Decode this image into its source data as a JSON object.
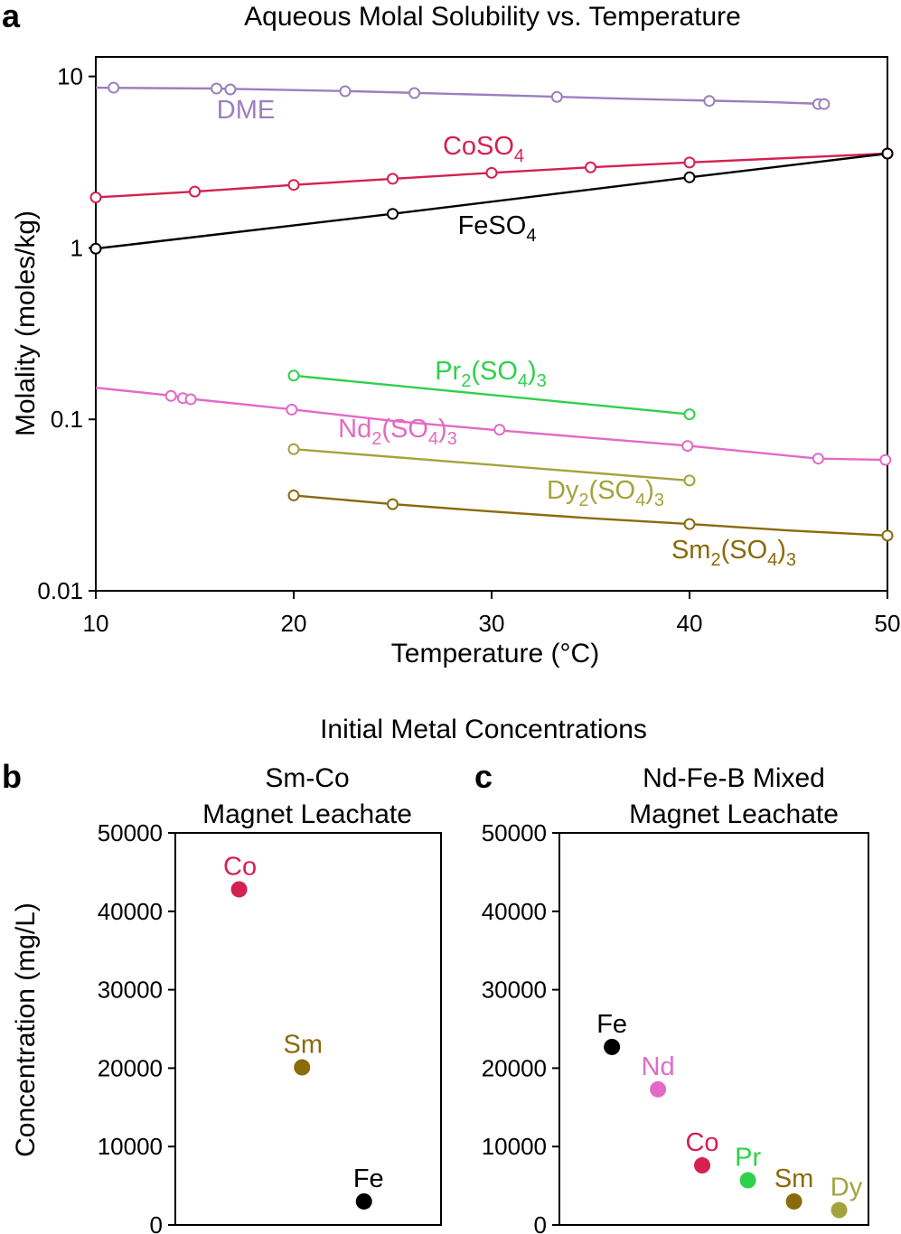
{
  "panel_letters": {
    "a": "a",
    "b": "b",
    "c": "c"
  },
  "chart_data": [
    {
      "panel": "a",
      "type": "line",
      "title": "Aqueous Molal Solubility vs. Temperature",
      "xlabel": "Temperature (°C)",
      "ylabel": "Molality (moles/kg)",
      "xscale": "linear",
      "yscale": "log",
      "xlim": [
        10,
        50
      ],
      "ylim": [
        0.01,
        13
      ],
      "xticks": [
        "10",
        "20",
        "30",
        "40",
        "50"
      ],
      "yticks": [
        {
          "value": 10,
          "label": "10"
        },
        {
          "value": 1,
          "label": "1"
        },
        {
          "value": 0.1,
          "label": "0.1"
        },
        {
          "value": 0.01,
          "label": "0.01"
        }
      ],
      "series": [
        {
          "name": "DME",
          "label_parts": [
            {
              "t": "DME"
            }
          ],
          "color": "#9b7fbf",
          "line": [
            [
              10,
              8.6
            ],
            [
              16,
              8.5
            ],
            [
              23,
              8.2
            ],
            [
              30,
              7.8
            ],
            [
              37,
              7.4
            ],
            [
              44,
              7.1
            ],
            [
              47,
              6.9
            ]
          ],
          "markers": [
            [
              10.9,
              8.6
            ],
            [
              16.1,
              8.5
            ],
            [
              16.8,
              8.4
            ],
            [
              22.6,
              8.2
            ],
            [
              26.1,
              8.0
            ],
            [
              33.3,
              7.6
            ],
            [
              41,
              7.2
            ],
            [
              46.5,
              6.9
            ],
            [
              46.8,
              6.9
            ]
          ]
        },
        {
          "name": "CoSO4",
          "label_parts": [
            {
              "t": "CoSO"
            },
            {
              "t": "4",
              "sub": true
            }
          ],
          "color": "#d4214f",
          "line": [
            [
              10,
              1.97
            ],
            [
              15,
              2.13
            ],
            [
              20,
              2.33
            ],
            [
              25,
              2.53
            ],
            [
              30,
              2.74
            ],
            [
              35,
              2.95
            ],
            [
              40,
              3.15
            ],
            [
              50,
              3.55
            ]
          ],
          "markers": [
            [
              10,
              1.97
            ],
            [
              15,
              2.13
            ],
            [
              20,
              2.33
            ],
            [
              25,
              2.53
            ],
            [
              30,
              2.74
            ],
            [
              35,
              2.95
            ],
            [
              40,
              3.15
            ],
            [
              50,
              3.55
            ]
          ]
        },
        {
          "name": "FeSO4",
          "label_parts": [
            {
              "t": "FeSO"
            },
            {
              "t": "4",
              "sub": true
            }
          ],
          "color": "#000000",
          "line": [
            [
              10,
              0.99
            ],
            [
              25,
              1.58
            ],
            [
              40,
              2.58
            ],
            [
              50,
              3.55
            ]
          ],
          "markers": [
            [
              10,
              0.99
            ],
            [
              25,
              1.58
            ],
            [
              40,
              2.58
            ],
            [
              50,
              3.55
            ]
          ]
        },
        {
          "name": "Pr2(SO4)3",
          "label_parts": [
            {
              "t": "Pr"
            },
            {
              "t": "2",
              "sub": true
            },
            {
              "t": "(SO"
            },
            {
              "t": "4",
              "sub": true
            },
            {
              "t": ")"
            },
            {
              "t": "3",
              "sub": true
            }
          ],
          "color": "#2ed14a",
          "line": [
            [
              20,
              0.18
            ],
            [
              40,
              0.107
            ]
          ],
          "markers": [
            [
              20,
              0.18
            ],
            [
              40,
              0.107
            ]
          ]
        },
        {
          "name": "Nd2(SO4)3",
          "label_parts": [
            {
              "t": "Nd"
            },
            {
              "t": "2",
              "sub": true
            },
            {
              "t": "(SO"
            },
            {
              "t": "4",
              "sub": true
            },
            {
              "t": ")"
            },
            {
              "t": "3",
              "sub": true
            }
          ],
          "color": "#e36ac7",
          "line": [
            [
              10,
              0.153
            ],
            [
              14,
              0.137
            ],
            [
              15,
              0.131
            ],
            [
              20,
              0.114
            ],
            [
              25,
              0.098
            ],
            [
              30,
              0.087
            ],
            [
              35,
              0.078
            ],
            [
              40,
              0.07
            ],
            [
              46.5,
              0.059
            ],
            [
              50,
              0.058
            ]
          ],
          "markers": [
            [
              13.8,
              0.137
            ],
            [
              14.4,
              0.133
            ],
            [
              14.8,
              0.131
            ],
            [
              19.9,
              0.114
            ],
            [
              30.4,
              0.087
            ],
            [
              39.9,
              0.07
            ],
            [
              46.5,
              0.059
            ],
            [
              49.9,
              0.058
            ]
          ]
        },
        {
          "name": "Dy2(SO4)3",
          "label_parts": [
            {
              "t": "Dy"
            },
            {
              "t": "2",
              "sub": true
            },
            {
              "t": "(SO"
            },
            {
              "t": "4",
              "sub": true
            },
            {
              "t": ")"
            },
            {
              "t": "3",
              "sub": true
            }
          ],
          "color": "#a3a33d",
          "line": [
            [
              20,
              0.067
            ],
            [
              40,
              0.044
            ]
          ],
          "markers": [
            [
              20,
              0.067
            ],
            [
              40,
              0.044
            ]
          ]
        },
        {
          "name": "Sm2(SO4)3",
          "label_parts": [
            {
              "t": "Sm"
            },
            {
              "t": "2",
              "sub": true
            },
            {
              "t": "(SO"
            },
            {
              "t": "4",
              "sub": true
            },
            {
              "t": ")"
            },
            {
              "t": "3",
              "sub": true
            }
          ],
          "color": "#8a6a0a",
          "line": [
            [
              20,
              0.036
            ],
            [
              25,
              0.032
            ],
            [
              30,
              0.029
            ],
            [
              35,
              0.0265
            ],
            [
              40,
              0.0245
            ],
            [
              45,
              0.0225
            ],
            [
              50,
              0.021
            ]
          ],
          "markers": [
            [
              20,
              0.036
            ],
            [
              25,
              0.032
            ],
            [
              40,
              0.0245
            ],
            [
              50,
              0.021
            ]
          ]
        }
      ]
    },
    {
      "panel": "b",
      "type": "scatter",
      "suptitle": "Initial Metal Concentrations",
      "title_lines": [
        "Sm-Co",
        "Magnet Leachate"
      ],
      "ylabel": "Concentration (mg/L)",
      "ylim": [
        0,
        50000
      ],
      "yticks": [
        "0",
        "10000",
        "20000",
        "30000",
        "40000",
        "50000"
      ],
      "points": [
        {
          "label": "Co",
          "value": 42800,
          "color": "#d4214f"
        },
        {
          "label": "Sm",
          "value": 20100,
          "color": "#8a6a0a"
        },
        {
          "label": "Fe",
          "value": 3000,
          "color": "#000000"
        }
      ]
    },
    {
      "panel": "c",
      "type": "scatter",
      "title_lines": [
        "Nd-Fe-B Mixed",
        "Magnet Leachate"
      ],
      "ylim": [
        0,
        50000
      ],
      "yticks": [
        "0",
        "10000",
        "20000",
        "30000",
        "40000",
        "50000"
      ],
      "points": [
        {
          "label": "Fe",
          "value": 22700,
          "color": "#000000"
        },
        {
          "label": "Nd",
          "value": 17300,
          "color": "#e36ac7"
        },
        {
          "label": "Co",
          "value": 7600,
          "color": "#d4214f"
        },
        {
          "label": "Pr",
          "value": 5700,
          "color": "#2ed14a"
        },
        {
          "label": "Sm",
          "value": 3000,
          "color": "#8a6a0a"
        },
        {
          "label": "Dy",
          "value": 1900,
          "color": "#a3a33d"
        }
      ]
    }
  ]
}
